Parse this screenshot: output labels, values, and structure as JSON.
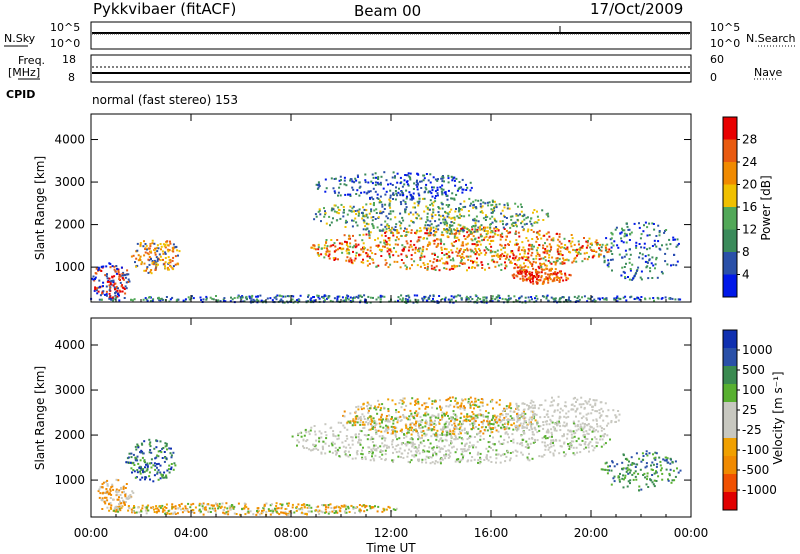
{
  "header": {
    "radar": "Pykkvibaer (fitACF)",
    "beam": "Beam 00",
    "date": "17/Oct/2009"
  },
  "top_panels": {
    "nsky_label": "N.Sky",
    "nsky_ticks": [
      "10^5",
      "10^0"
    ],
    "nsearch_label": "N.Search",
    "nsearch_ticks": [
      "10^5",
      "10^0"
    ],
    "freq_label_line1": "Freq.",
    "freq_label_line2": "[MHz]",
    "freq_ticks": [
      "18",
      "8"
    ],
    "nave_label": "Nave",
    "nave_ticks": [
      "60",
      "0"
    ],
    "cpid_label": "CPID",
    "cpid_text": "normal (fast stereo) 153"
  },
  "colors": {
    "power_scale": [
      "#0018e8",
      "#2a50a8",
      "#3a8a5a",
      "#52a858",
      "#f0c000",
      "#f08a00",
      "#e85a10",
      "#e80000"
    ],
    "velocity_scale": [
      "#e00000",
      "#f05000",
      "#f08a00",
      "#f0a000",
      "#c8c8c0",
      "#c8c8c0",
      "#58b030",
      "#3a8a50",
      "#2a50a8",
      "#1030b0"
    ]
  },
  "chart_data": [
    {
      "type": "heatmap",
      "title": "Power",
      "ylabel": "Slant Range [km]",
      "xlabel": "",
      "ylim": [
        180,
        4600
      ],
      "xlim": [
        0,
        24
      ],
      "yticks": [
        "1000",
        "2000",
        "3000",
        "4000"
      ],
      "xticks": [
        "00:00",
        "04:00",
        "08:00",
        "12:00",
        "16:00",
        "20:00",
        "00:00"
      ],
      "colorbar_label": "Power [dB]",
      "colorbar_ticks": [
        "4",
        "8",
        "12",
        "16",
        "20",
        "24",
        "28"
      ],
      "colorbar_range": [
        0,
        32
      ]
    },
    {
      "type": "heatmap",
      "title": "Velocity",
      "ylabel": "Slant Range [km]",
      "xlabel": "Time UT",
      "ylim": [
        180,
        4600
      ],
      "xlim": [
        0,
        24
      ],
      "yticks": [
        "1000",
        "2000",
        "3000",
        "4000"
      ],
      "xticks": [
        "00:00",
        "04:00",
        "08:00",
        "12:00",
        "16:00",
        "20:00",
        "00:00"
      ],
      "colorbar_label": "Velocity [m s⁻¹]",
      "colorbar_ticks": [
        "1000",
        "500",
        "100",
        "25",
        "-25",
        "-100",
        "-500",
        "-1000"
      ]
    }
  ]
}
